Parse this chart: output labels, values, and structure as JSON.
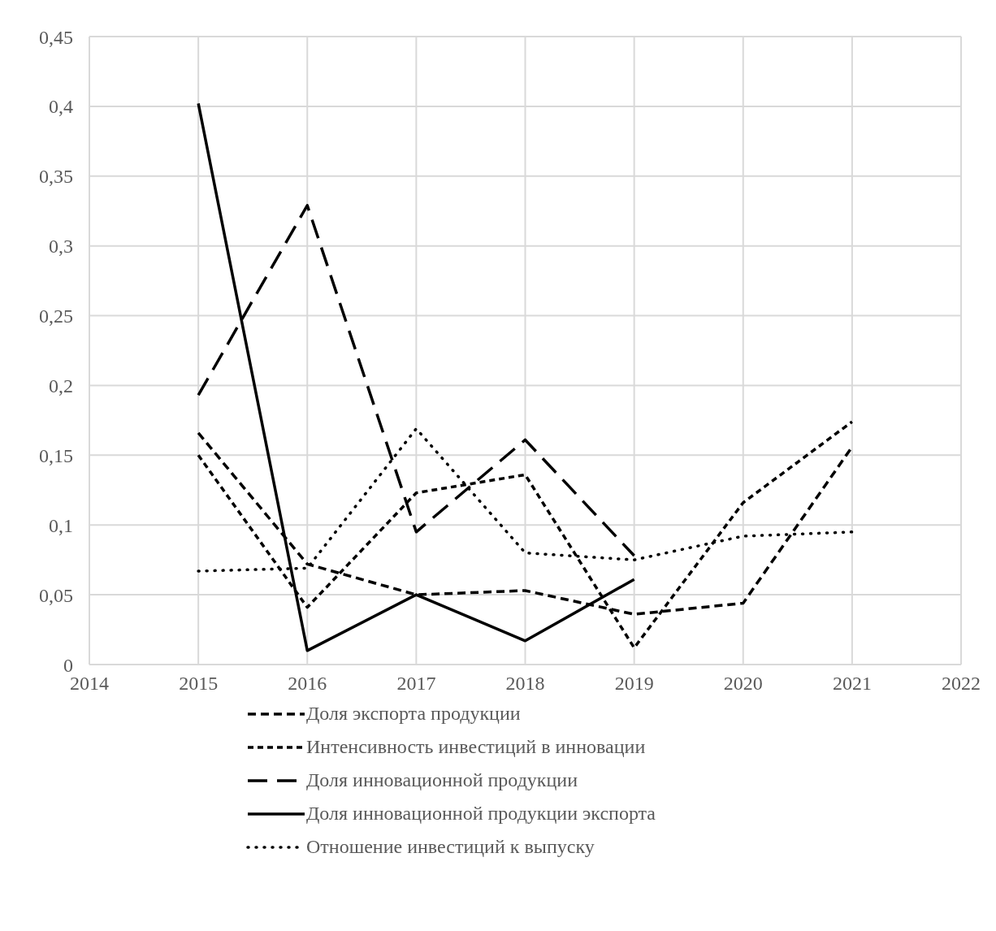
{
  "chart_data": {
    "type": "line",
    "x": [
      2015,
      2016,
      2017,
      2018,
      2019,
      2020,
      2021
    ],
    "series": [
      {
        "name": "Доля экспорта продукции",
        "color": "#000000",
        "line_style": "dashed",
        "values": [
          0.166,
          0.072,
          0.05,
          0.053,
          0.036,
          0.044,
          0.156
        ]
      },
      {
        "name": "Интенсивность инвестиций в инновации",
        "color": "#000000",
        "line_style": "dashed",
        "values": [
          0.15,
          0.041,
          0.123,
          0.136,
          0.012,
          0.116,
          0.174
        ]
      },
      {
        "name": "Доля инновационной продукции",
        "color": "#000000",
        "line_style": "dashed",
        "values": [
          0.193,
          0.329,
          0.095,
          0.161,
          0.078,
          null,
          null
        ]
      },
      {
        "name": "Доля инновационной продукции экспорта",
        "color": "#000000",
        "line_style": "solid",
        "values": [
          0.402,
          0.01,
          0.05,
          0.017,
          0.061,
          null,
          null
        ]
      },
      {
        "name": "Отношение инвестиций к выпуску",
        "color": "#000000",
        "line_style": "dotted",
        "values": [
          0.067,
          0.069,
          0.169,
          0.08,
          0.075,
          0.092,
          0.095
        ]
      }
    ],
    "xlim": [
      2014,
      2022
    ],
    "xticks": [
      2014,
      2015,
      2016,
      2017,
      2018,
      2019,
      2020,
      2021,
      2022
    ],
    "ylim": [
      0,
      0.45
    ],
    "yticks": [
      0,
      {
        "value": 0.05,
        "label": "0,05"
      },
      {
        "value": 0.1,
        "label": "0,1"
      },
      {
        "value": 0.15,
        "label": "0,15"
      },
      {
        "value": 0.2,
        "label": "0,2"
      },
      {
        "value": 0.25,
        "label": "0,25"
      },
      {
        "value": 0.3,
        "label": "0,3"
      },
      {
        "value": 0.35,
        "label": "0,35"
      },
      {
        "value": 0.4,
        "label": "0,4"
      },
      {
        "value": 0.45,
        "label": "0,45"
      }
    ],
    "grid": true,
    "legend": "bottom",
    "marker": "none"
  }
}
